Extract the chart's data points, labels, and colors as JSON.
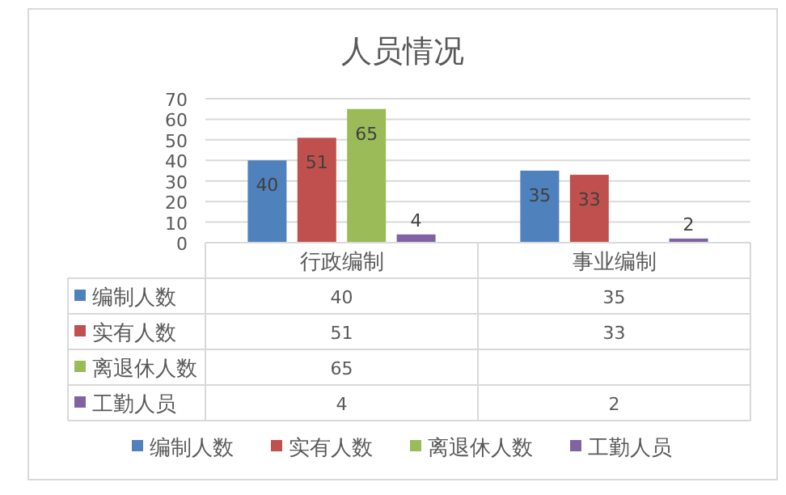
{
  "chart_data": {
    "type": "bar",
    "title": "人员情况",
    "categories": [
      "行政编制",
      "事业编制"
    ],
    "series": [
      {
        "name": "编制人数",
        "color": "#4f81bd",
        "values": [
          40,
          35
        ]
      },
      {
        "name": "实有人数",
        "color": "#c0504d",
        "values": [
          51,
          33
        ]
      },
      {
        "name": "离退休人数",
        "color": "#9bbb59",
        "values": [
          65,
          null
        ]
      },
      {
        "name": "工勤人员",
        "color": "#8064a2",
        "values": [
          4,
          2
        ]
      }
    ],
    "annotations": [
      "40",
      "35",
      "51",
      "33",
      "65",
      "4",
      "2"
    ],
    "ylim": [
      0,
      70
    ],
    "yticks": [
      0,
      10,
      20,
      30,
      40,
      50,
      60,
      70
    ],
    "grid": "y",
    "data_labels": true,
    "legend": "bottom"
  }
}
